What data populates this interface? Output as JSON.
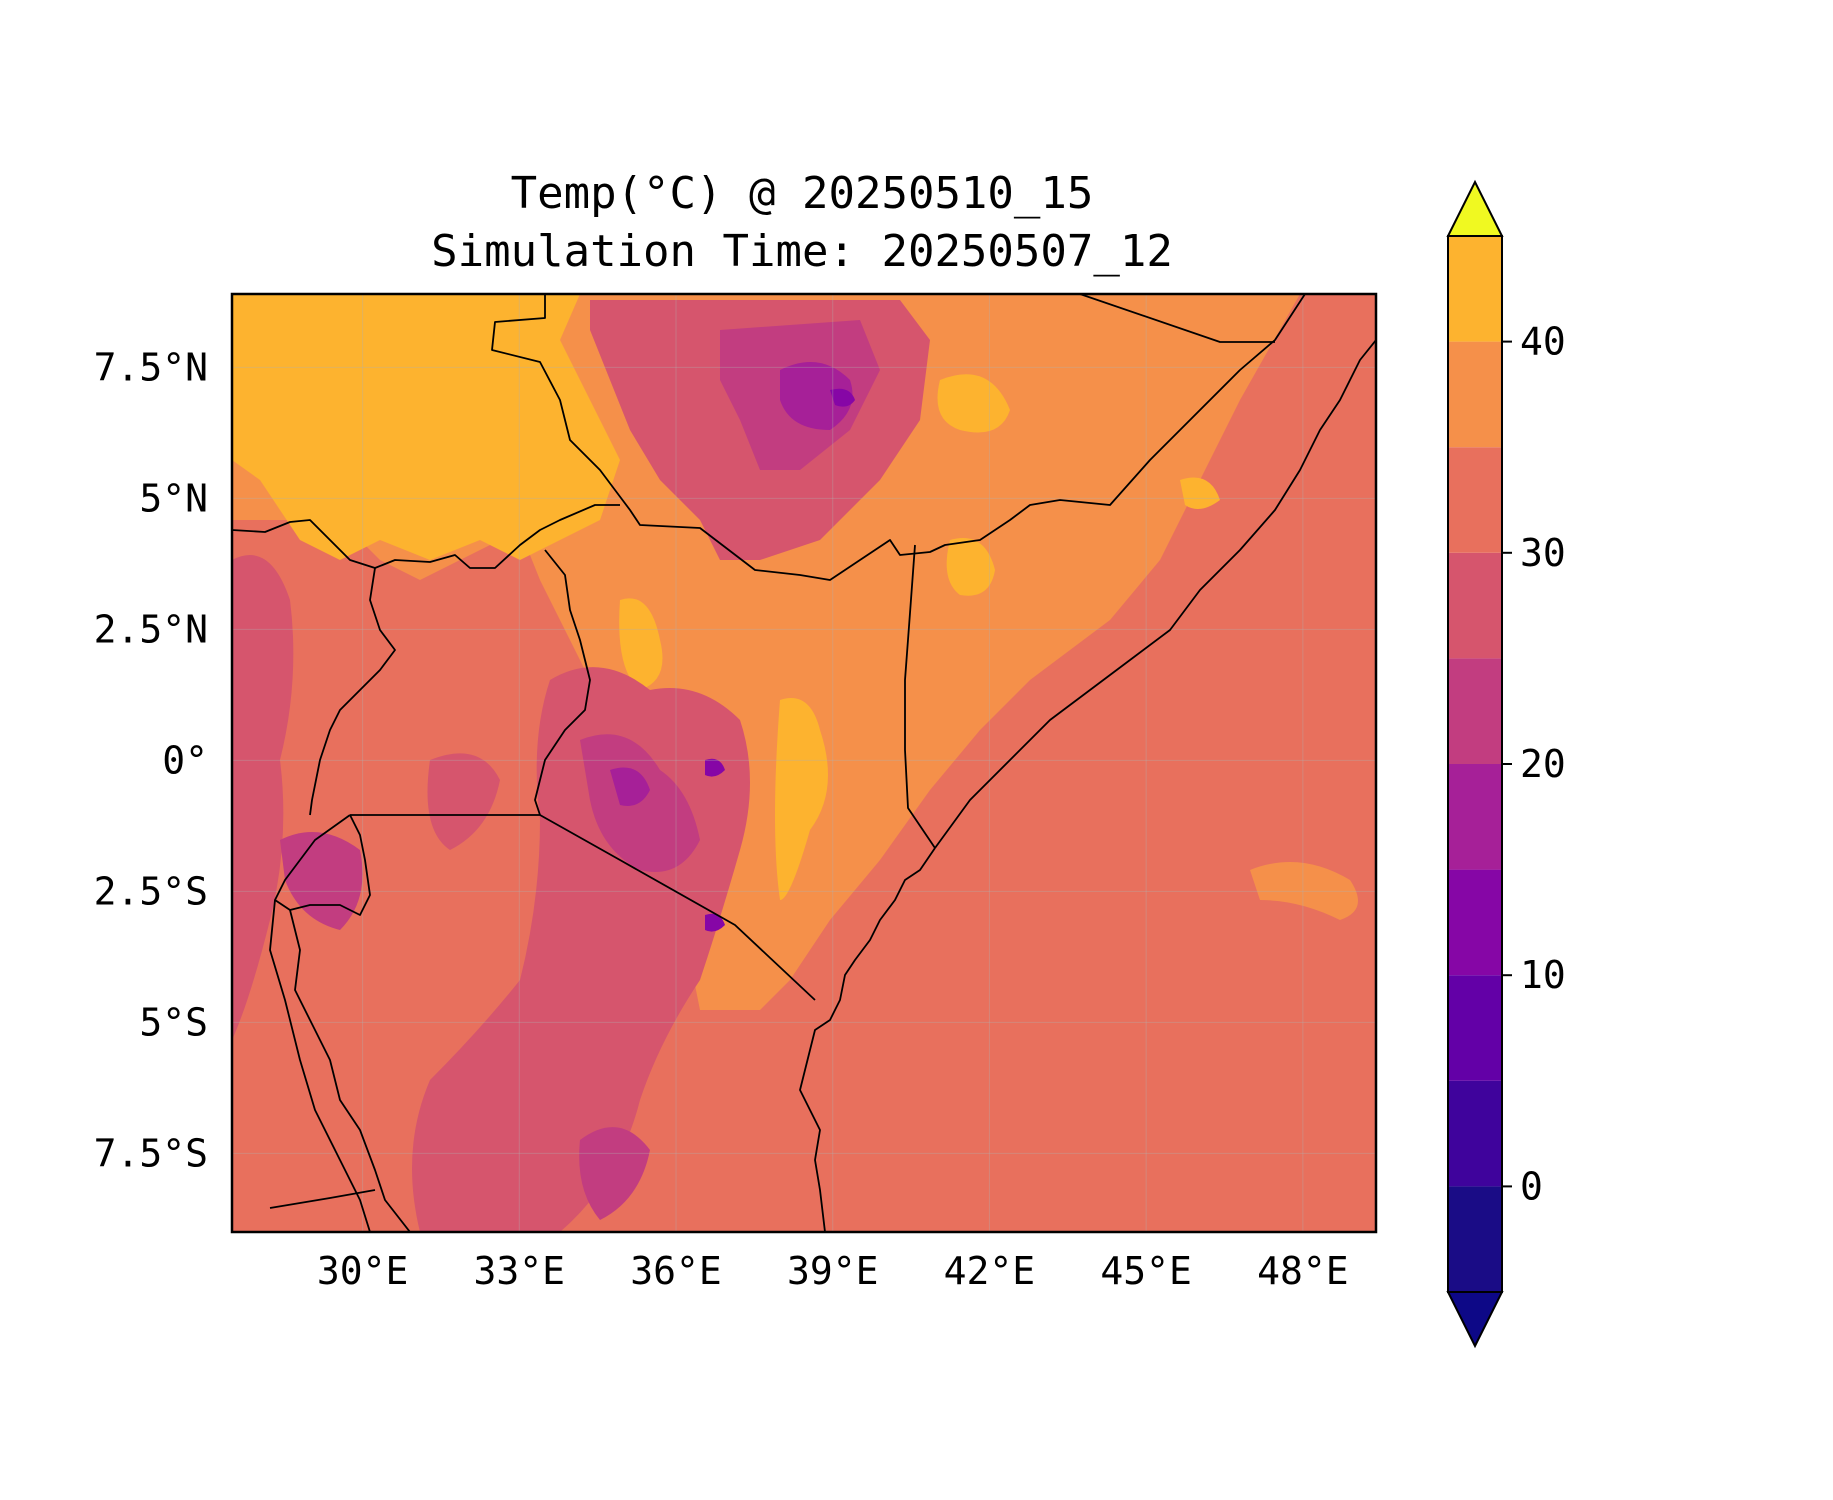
{
  "title": {
    "line1": "Temp(°C) @ 20250510_15",
    "line2": "Simulation Time: 20250507_12"
  },
  "map": {
    "lon_range": [
      27.5,
      49.4
    ],
    "lat_range": [
      -9.0,
      8.9
    ],
    "xticks": [
      {
        "value": 30,
        "label": "30°E"
      },
      {
        "value": 33,
        "label": "33°E"
      },
      {
        "value": 36,
        "label": "36°E"
      },
      {
        "value": 39,
        "label": "39°E"
      },
      {
        "value": 42,
        "label": "42°E"
      },
      {
        "value": 45,
        "label": "45°E"
      },
      {
        "value": 48,
        "label": "48°E"
      }
    ],
    "yticks": [
      {
        "value": 7.5,
        "label": "7.5°N"
      },
      {
        "value": 5,
        "label": "5°N"
      },
      {
        "value": 2.5,
        "label": "2.5°N"
      },
      {
        "value": 0,
        "label": "0°"
      },
      {
        "value": -2.5,
        "label": "2.5°S"
      },
      {
        "value": -5,
        "label": "5°S"
      },
      {
        "value": -7.5,
        "label": "7.5°S"
      }
    ],
    "gridlines": true,
    "variable": "temperature"
  },
  "colorbar": {
    "levels": [
      -5,
      0,
      5,
      10,
      15,
      20,
      25,
      30,
      35,
      40,
      45
    ],
    "colors": [
      "#1a0c86",
      "#3f039c",
      "#6300a7",
      "#8606a6",
      "#a62098",
      "#c23d80",
      "#d6556d",
      "#e8705d",
      "#f5904a",
      "#fdb32f",
      "#f4e021"
    ],
    "under_color": "#0d0887",
    "over_color": "#f0f921",
    "extend": "both",
    "tick_labels": [
      {
        "value": 0,
        "label": "0"
      },
      {
        "value": 10,
        "label": "10"
      },
      {
        "value": 20,
        "label": "20"
      },
      {
        "value": 30,
        "label": "30"
      },
      {
        "value": 40,
        "label": "40"
      }
    ]
  }
}
